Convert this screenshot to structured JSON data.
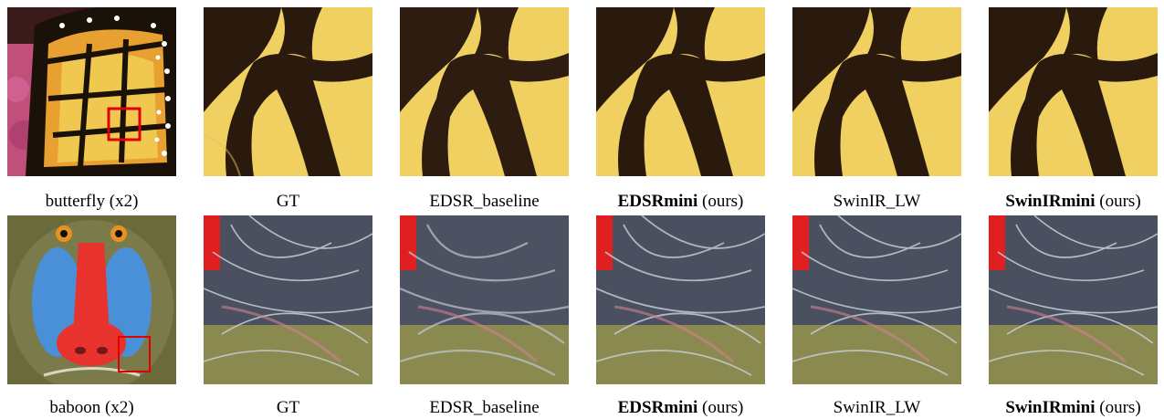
{
  "rows": [
    {
      "name": "butterfly",
      "captions": [
        {
          "text": "butterfly (x2)"
        },
        {
          "text": "GT"
        },
        {
          "text": "EDSR_baseline"
        },
        {
          "bold": "EDSRmini",
          "rest": " (ours)"
        },
        {
          "text": "SwinIR_LW"
        },
        {
          "bold": "SwinIRmini",
          "rest": " (ours)"
        }
      ]
    },
    {
      "name": "baboon",
      "captions": [
        {
          "text": "baboon (x2)"
        },
        {
          "text": "GT"
        },
        {
          "text": "EDSR_baseline"
        },
        {
          "bold": "EDSRmini",
          "rest": " (ours)"
        },
        {
          "text": "SwinIR_LW"
        },
        {
          "bold": "SwinIRmini",
          "rest": " (ours)"
        }
      ]
    }
  ],
  "colors": {
    "wing_yellow": "#f0d060",
    "wing_orange": "#e8a030",
    "vein_dark": "#2a1a0e",
    "crop_box": "#e00000",
    "baboon_red": "#e8322e",
    "baboon_blue": "#4a90d8",
    "fur_olive": "#7a7a4a"
  }
}
